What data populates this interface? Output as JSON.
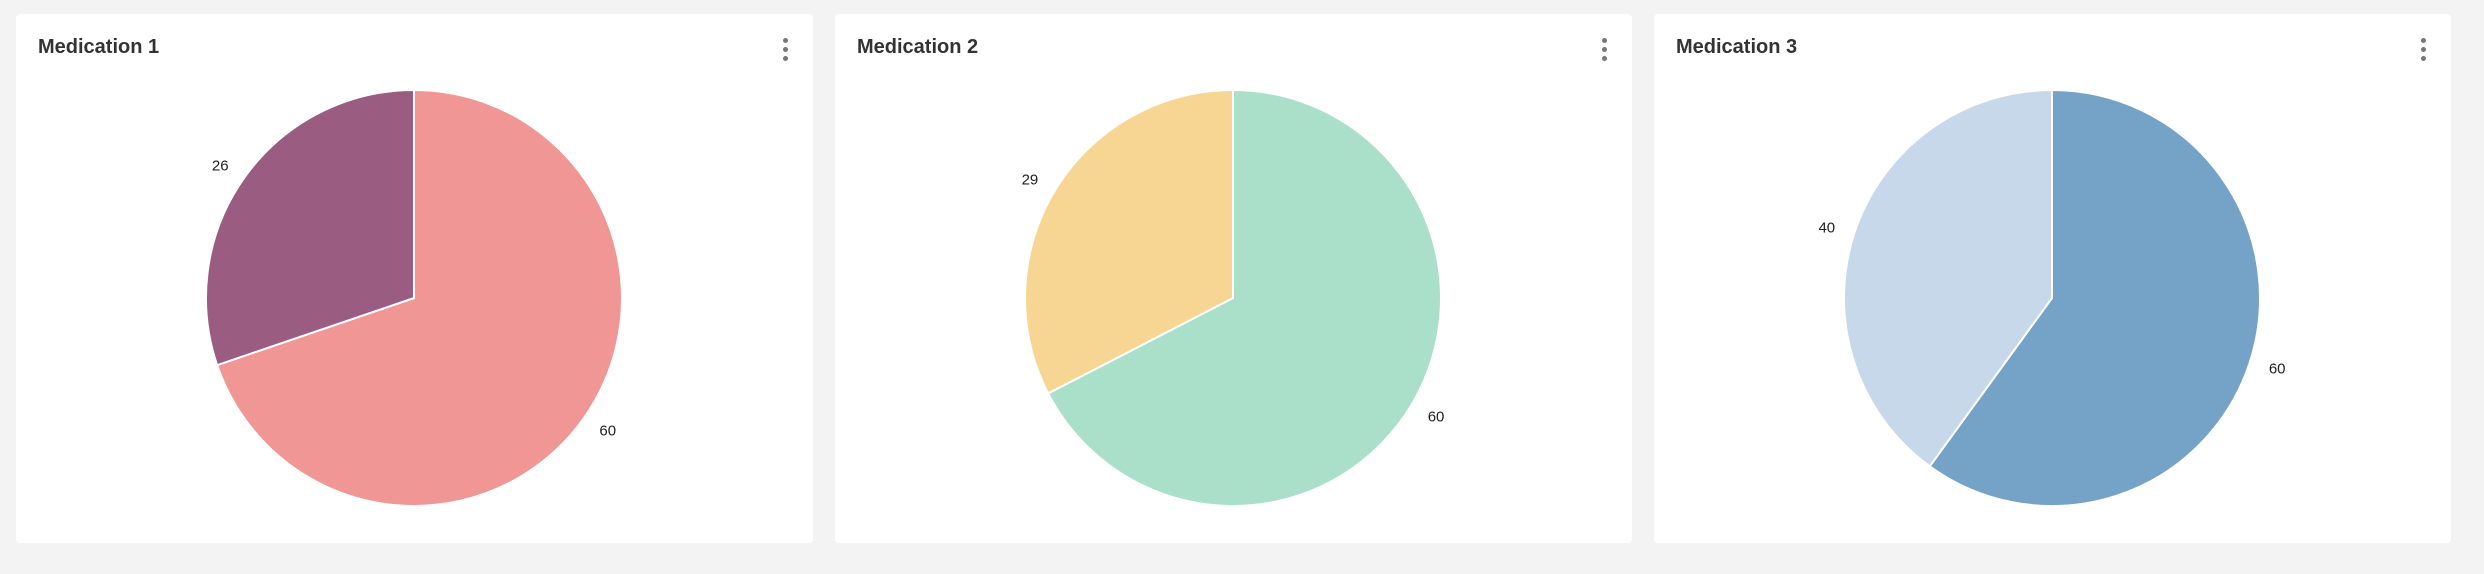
{
  "chart_data": [
    {
      "type": "pie",
      "title": "Medication 1",
      "slices": [
        {
          "value": 60,
          "color": "#f09694"
        },
        {
          "value": 26,
          "color": "#9b5c82"
        }
      ]
    },
    {
      "type": "pie",
      "title": "Medication 2",
      "slices": [
        {
          "value": 60,
          "color": "#aadfca"
        },
        {
          "value": 29,
          "color": "#f7d693"
        }
      ]
    },
    {
      "type": "pie",
      "title": "Medication 3",
      "slices": [
        {
          "value": 60,
          "color": "#75a3c8"
        },
        {
          "value": 40,
          "color": "#c8d8eb"
        }
      ]
    }
  ],
  "icons": {
    "menu": "more-vertical-icon"
  }
}
